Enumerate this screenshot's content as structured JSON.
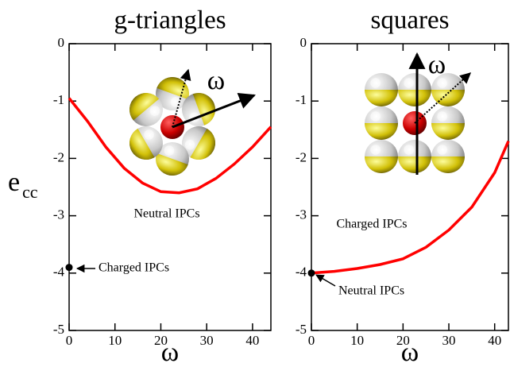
{
  "chart_data": [
    {
      "type": "line",
      "title": "g-triangles",
      "ylabel": "e",
      "ylabel_sub": "cc",
      "xlabel": "ω",
      "xlim": [
        0,
        44
      ],
      "ylim": [
        -5,
        0
      ],
      "xticks": [
        0,
        10,
        20,
        30,
        40
      ],
      "yticks": [
        0,
        -1,
        -2,
        -3,
        -4,
        -5
      ],
      "inset_label": "ω",
      "series": [
        {
          "color": "#ff0000",
          "x": [
            0,
            4,
            8,
            12,
            16,
            20,
            24,
            28,
            32,
            36,
            40,
            44
          ],
          "values": [
            -0.95,
            -1.35,
            -1.8,
            -2.17,
            -2.43,
            -2.58,
            -2.6,
            -2.53,
            -2.35,
            -2.1,
            -1.8,
            -1.45
          ]
        },
        {
          "color": "#000000",
          "marker": "circle",
          "x": [
            0
          ],
          "values": [
            -3.9
          ]
        }
      ],
      "annotations": [
        {
          "text": "Neutral IPCs",
          "color": "#ff0000"
        },
        {
          "text": "Charged IPCs",
          "color": "#000000"
        }
      ]
    },
    {
      "type": "line",
      "title": "squares",
      "xlabel": "ω",
      "xlim": [
        0,
        43
      ],
      "ylim": [
        -5,
        0
      ],
      "xticks": [
        0,
        10,
        20,
        30,
        40
      ],
      "yticks": [
        0,
        -1,
        -2,
        -3,
        -4,
        -5
      ],
      "inset_label": "ω",
      "series": [
        {
          "color": "#ff0000",
          "x": [
            0,
            5,
            10,
            15,
            20,
            25,
            30,
            35,
            40,
            43
          ],
          "values": [
            -4,
            -3.97,
            -3.92,
            -3.85,
            -3.75,
            -3.55,
            -3.25,
            -2.85,
            -2.25,
            -1.7
          ]
        },
        {
          "color": "#000000",
          "marker": "circle",
          "x": [
            0
          ],
          "values": [
            -4
          ]
        }
      ],
      "annotations": [
        {
          "text": "Charged IPCs",
          "color": "#ff0000"
        },
        {
          "text": "Neutral IPCs",
          "color": "#000000"
        }
      ]
    }
  ]
}
